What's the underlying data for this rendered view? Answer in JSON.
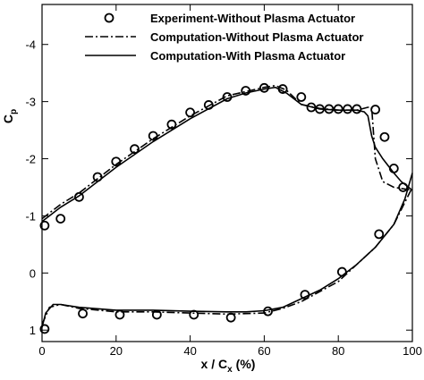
{
  "chart_data": {
    "type": "line",
    "xlabel": {
      "text": "x / C",
      "sub": "x",
      "tail": "(%)"
    },
    "ylabel": {
      "text": "C",
      "sub": "p"
    },
    "xlim": [
      0,
      100
    ],
    "xticks": [
      0,
      20,
      40,
      60,
      80,
      100
    ],
    "ylim": [
      1.2,
      -4.7
    ],
    "yticks": [
      -4,
      -3,
      -2,
      -1,
      0,
      1
    ],
    "series": [
      {
        "name": "Experiment-Without Plasma Actuator",
        "color": "#000000",
        "style": "marker",
        "x": [
          0.7,
          5,
          10,
          15,
          20,
          25,
          30,
          35,
          40,
          45,
          50,
          55,
          60,
          65,
          70,
          72.7,
          75,
          77.5,
          80,
          82.5,
          85,
          90,
          92.5,
          95,
          97.5,
          0.7,
          11,
          21,
          31,
          41,
          51,
          61,
          71,
          81,
          91
        ],
        "values": [
          -0.83,
          -0.95,
          -1.33,
          -1.68,
          -1.95,
          -2.17,
          -2.4,
          -2.6,
          -2.81,
          -2.94,
          -3.08,
          -3.19,
          -3.24,
          -3.22,
          -3.08,
          -2.9,
          -2.87,
          -2.87,
          -2.87,
          -2.87,
          -2.87,
          -2.86,
          -2.38,
          -1.83,
          -1.5,
          0.98,
          0.71,
          0.73,
          0.73,
          0.73,
          0.78,
          0.67,
          0.38,
          -0.02,
          -0.68
        ]
      },
      {
        "name": "Computation-Without Plasma Actuator",
        "color": "#000000",
        "style": "dashdot",
        "x": [
          0,
          5,
          10,
          20,
          30,
          40,
          50,
          60,
          63,
          66,
          70,
          75,
          80,
          85,
          88,
          89,
          90,
          92,
          95,
          100,
          null,
          0,
          2,
          5,
          10,
          20,
          30,
          40,
          50,
          60,
          65,
          70,
          80,
          90,
          95,
          100
        ],
        "values": [
          -0.95,
          -1.2,
          -1.4,
          -1.9,
          -2.35,
          -2.75,
          -3.1,
          -3.25,
          -3.28,
          -3.2,
          -2.95,
          -2.88,
          -2.85,
          -2.85,
          -2.9,
          -2.9,
          -2.0,
          -1.6,
          -1.5,
          -1.45,
          null,
          0.9,
          0.6,
          0.55,
          0.62,
          0.68,
          0.68,
          0.7,
          0.72,
          0.7,
          0.62,
          0.5,
          0.15,
          -0.45,
          -0.85,
          -1.5
        ]
      },
      {
        "name": "Computation-With Plasma Actuator",
        "color": "#000000",
        "style": "solid",
        "x": [
          0,
          2,
          5,
          10,
          20,
          30,
          40,
          50,
          55,
          60,
          63,
          66,
          70,
          75,
          80,
          85,
          87,
          88,
          89,
          90,
          92,
          95,
          97,
          100,
          null,
          0,
          1,
          3,
          5,
          10,
          20,
          30,
          40,
          50,
          55,
          60,
          65,
          70,
          75,
          80,
          85,
          90,
          95,
          98,
          100
        ],
        "values": [
          -0.9,
          -1.0,
          -1.15,
          -1.35,
          -1.85,
          -2.3,
          -2.7,
          -3.05,
          -3.15,
          -3.22,
          -3.25,
          -3.15,
          -2.95,
          -2.87,
          -2.85,
          -2.85,
          -2.82,
          -2.75,
          -2.4,
          -2.2,
          -2.0,
          -1.75,
          -1.6,
          -1.45,
          null,
          0.95,
          0.7,
          0.55,
          0.55,
          0.6,
          0.65,
          0.65,
          0.67,
          0.68,
          0.68,
          0.66,
          0.6,
          0.45,
          0.3,
          0.1,
          -0.15,
          -0.45,
          -0.85,
          -1.3,
          -1.75
        ]
      }
    ]
  }
}
